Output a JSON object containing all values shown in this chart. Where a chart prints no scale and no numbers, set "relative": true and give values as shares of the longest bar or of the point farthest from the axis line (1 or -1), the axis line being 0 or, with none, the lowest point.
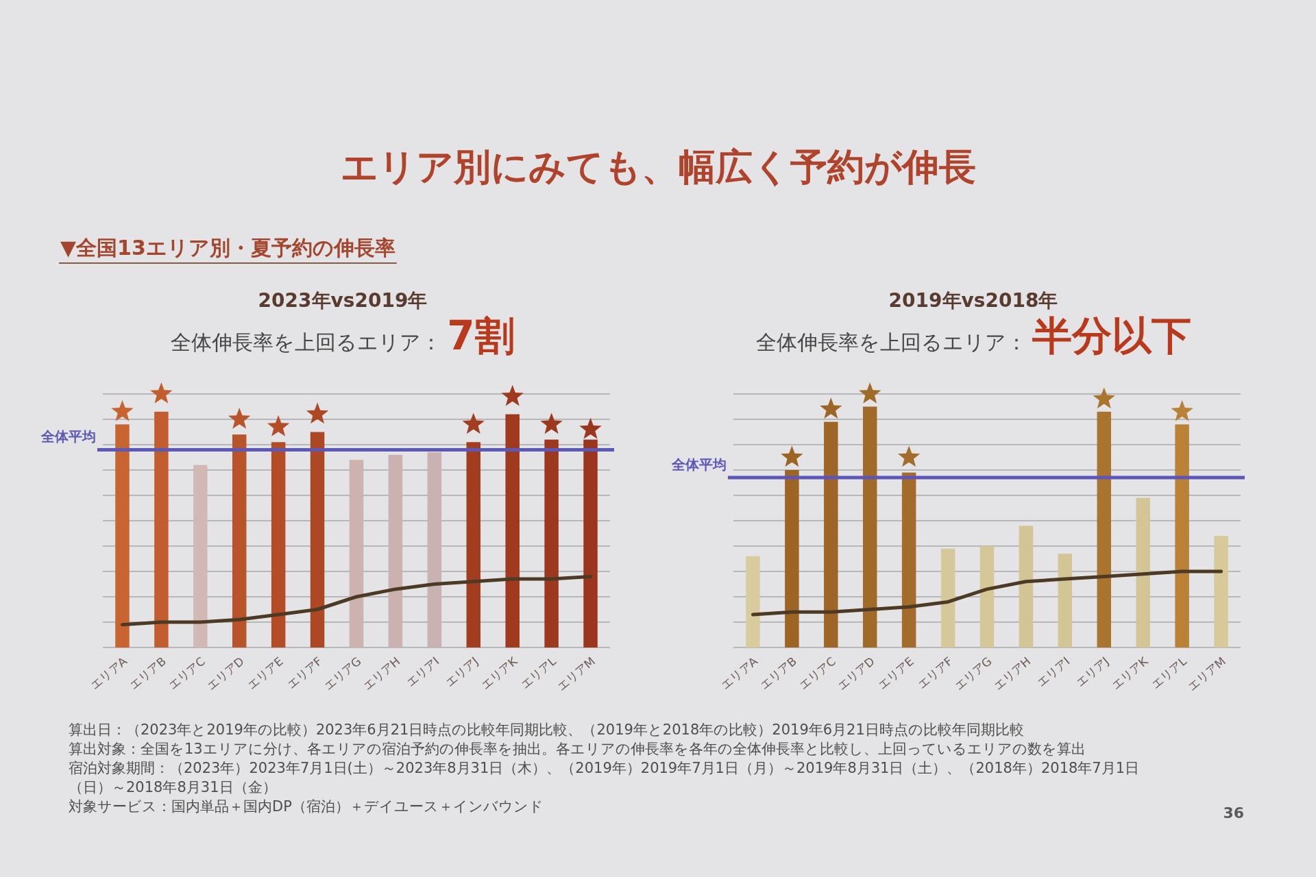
{
  "chart_data": [
    {
      "type": "other",
      "title": "エリア別にみても、幅広く予約が伸長",
      "subtitle": "▼全国13エリア別・夏予約の伸長率"
    },
    {
      "type": "bar",
      "title": "2023年vs2019年",
      "subtitle": "全体伸長率を上回るエリア：",
      "annotations": [
        "7割"
      ],
      "relative": true,
      "grid": "y",
      "categories": [
        "エリアA",
        "エリアB",
        "エリアC",
        "エリアD",
        "エリアE",
        "エリアF",
        "エリアG",
        "エリアH",
        "エリアI",
        "エリアJ",
        "エリアK",
        "エリアL",
        "エリアM"
      ],
      "series": [
        {
          "type": "bar",
          "values": [
            0.88,
            0.93,
            0.72,
            0.84,
            0.81,
            0.85,
            0.74,
            0.76,
            0.77,
            0.81,
            0.92,
            0.82,
            0.82
          ],
          "colors": [
            "#c8642f",
            "#c25e2d",
            "#d2b8b4",
            "#b9532a",
            "#b44d27",
            "#ae4724",
            "#cdb3b0",
            "#cbb2b0",
            "#c9b2b1",
            "#a23d20",
            "#9f3a1f",
            "#9c381e",
            "#9a361d"
          ]
        },
        {
          "type": "line",
          "color": "#4d3a25",
          "values": [
            0.09,
            0.1,
            0.1,
            0.11,
            0.13,
            0.15,
            0.2,
            0.23,
            0.25,
            0.26,
            0.27,
            0.27,
            0.28
          ]
        },
        {
          "type": "scatter",
          "marker": "star",
          "x": [
            "エリアA",
            "エリアB",
            "エリアD",
            "エリアE",
            "エリアF",
            "エリアJ",
            "エリアK",
            "エリアL",
            "エリアM"
          ],
          "values": [
            0.93,
            1.0,
            0.9,
            0.87,
            0.92,
            0.88,
            0.99,
            0.88,
            0.86
          ],
          "colors": [
            "#c8642f",
            "#c25e2d",
            "#b9532a",
            "#b44d27",
            "#ae4724",
            "#a23d20",
            "#9f3a1f",
            "#9c381e",
            "#9a361d"
          ]
        }
      ],
      "ref_lines": [
        {
          "axis": "y",
          "value": 0.78,
          "label": "全体平均",
          "color": "#5c58b6"
        }
      ]
    },
    {
      "type": "bar",
      "title": "2019年vs2018年",
      "subtitle": "全体伸長率を上回るエリア：",
      "annotations": [
        "半分以下"
      ],
      "relative": true,
      "grid": "y",
      "categories": [
        "エリアA",
        "エリアB",
        "エリアC",
        "エリアD",
        "エリアE",
        "エリアF",
        "エリアG",
        "エリアH",
        "エリアI",
        "エリアJ",
        "エリアK",
        "エリアL",
        "エリアM"
      ],
      "series": [
        {
          "type": "bar",
          "values": [
            0.36,
            0.7,
            0.89,
            0.95,
            0.69,
            0.39,
            0.4,
            0.48,
            0.37,
            0.93,
            0.59,
            0.88,
            0.44
          ],
          "colors": [
            "#d9cb9e",
            "#9c6524",
            "#9d6626",
            "#a06a28",
            "#a36c2a",
            "#d6c89a",
            "#d5c798",
            "#d4c596",
            "#d4c597",
            "#ab742e",
            "#d3c596",
            "#b98236",
            "#d8c99a"
          ]
        },
        {
          "type": "line",
          "color": "#4d3a25",
          "values": [
            0.13,
            0.14,
            0.14,
            0.15,
            0.16,
            0.18,
            0.23,
            0.26,
            0.27,
            0.28,
            0.29,
            0.3,
            0.3
          ]
        },
        {
          "type": "scatter",
          "marker": "star",
          "x": [
            "エリアB",
            "エリアC",
            "エリアD",
            "エリアE",
            "エリアJ",
            "エリアL"
          ],
          "values": [
            0.75,
            0.94,
            1.0,
            0.75,
            0.98,
            0.93
          ],
          "colors": [
            "#9c6524",
            "#9d6626",
            "#a06a28",
            "#a36c2a",
            "#ab742e",
            "#b98236"
          ]
        }
      ],
      "ref_lines": [
        {
          "axis": "y",
          "value": 0.67,
          "label": "全体平均",
          "color": "#5d55b8"
        }
      ]
    },
    {
      "type": "other",
      "annotations": [
        "算出日：（2023年と2019年の比較）2023年6月21日時点の比較年同期比較、（2019年と2018年の比較）2019年6月21日時点の比較年同期比較",
        "算出対象：全国を13エリアに分け、各エリアの宿泊予約の伸長率を抽出。各エリアの伸長率を各年の全体伸長率と比較し、上回っているエリアの数を算出",
        "宿泊対象期間：（2023年）2023年7月1日(土）～2023年8月31日（木）、（2019年）2019年7月1日（月）～2019年8月31日（土）、（2018年）2018年7月1日（日）～2018年8月31日（金）",
        "対象サービス：国内単品＋国内DP（宿泊）＋デイユース＋インバウンド",
        "36"
      ]
    }
  ]
}
